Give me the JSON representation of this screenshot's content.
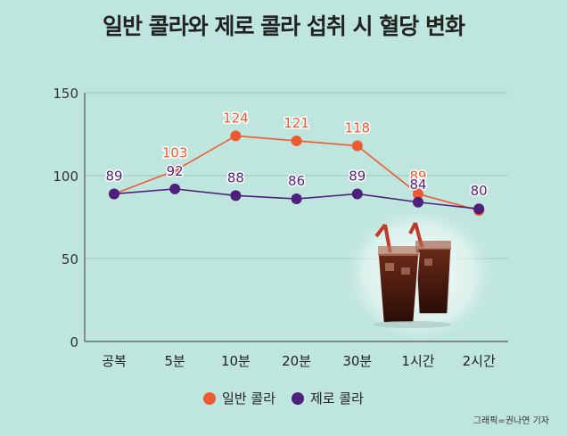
{
  "title": "일반 콜라와 제로 콜라 섭취 시 혈당 변화",
  "credit": "그래픽=권나연 기자",
  "colors": {
    "background": "#bfe6de",
    "regular": "#ee5a2f",
    "zero": "#4e1f7c",
    "grid": "#8fbab2"
  },
  "chart_data": {
    "type": "line",
    "categories": [
      "공복",
      "5분",
      "10분",
      "20분",
      "30분",
      "1시간",
      "2시간"
    ],
    "y_ticks": [
      "0",
      "50",
      "100",
      "150"
    ],
    "ylim": [
      0,
      150
    ],
    "grid": true,
    "legend_position": "bottom",
    "series": [
      {
        "name": "일반 콜라",
        "color": "#ee5a2f",
        "values": [
          89,
          103,
          124,
          121,
          118,
          89,
          79
        ],
        "labels": [
          "",
          "103",
          "124",
          "121",
          "118",
          "89",
          ""
        ]
      },
      {
        "name": "제로 콜라",
        "color": "#4e1f7c",
        "values": [
          89,
          92,
          88,
          86,
          89,
          84,
          80
        ],
        "labels": [
          "89",
          "92",
          "88",
          "86",
          "89",
          "84",
          "80"
        ]
      }
    ]
  }
}
